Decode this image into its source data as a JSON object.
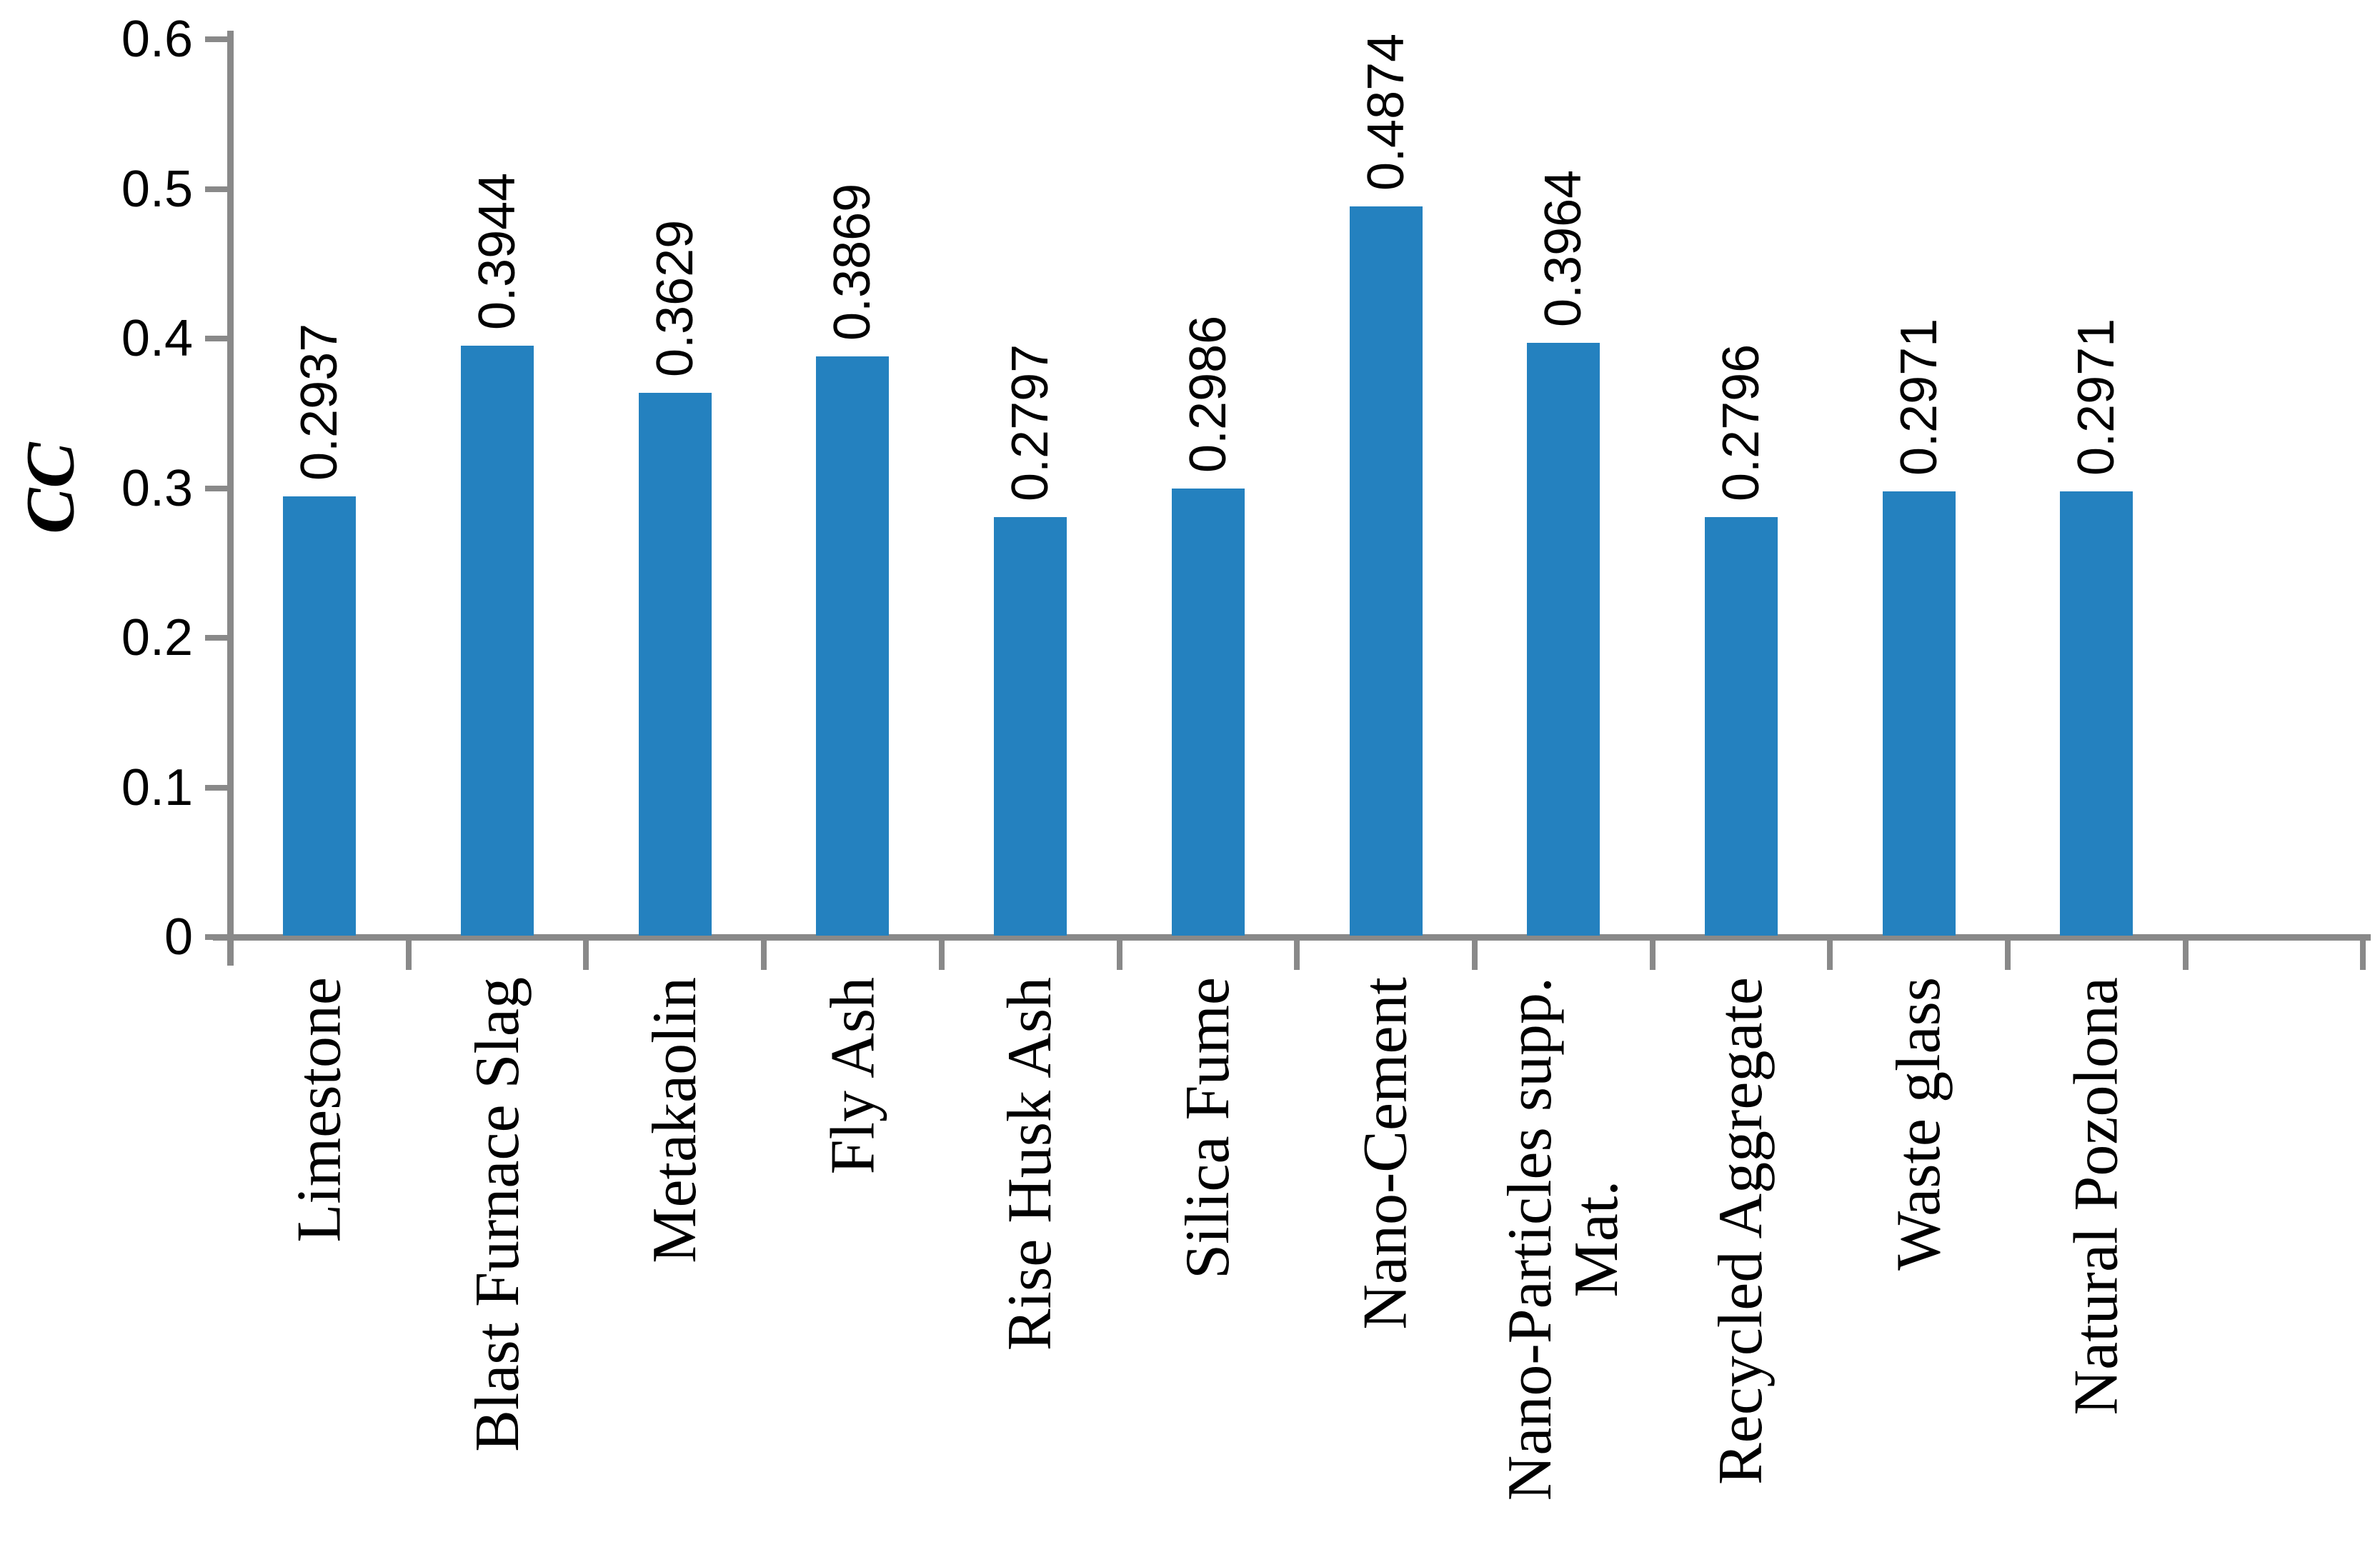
{
  "chart_data": {
    "type": "bar",
    "title": "",
    "xlabel": "",
    "ylabel": "CC",
    "categories": [
      [
        "Limestone"
      ],
      [
        "Blast Furnace Slag"
      ],
      [
        "Metakaolin"
      ],
      [
        "Fly Ash"
      ],
      [
        "Rise Husk Ash"
      ],
      [
        "Silica Fume"
      ],
      [
        "Nano-Cement"
      ],
      [
        "Nano-Particles supp.",
        "Mat."
      ],
      [
        "Recycled Aggregate"
      ],
      [
        "Waste glass"
      ],
      [
        "Natural Pozolona"
      ]
    ],
    "values": [
      0.2937,
      0.3944,
      0.3629,
      0.3869,
      0.2797,
      0.2986,
      0.4874,
      0.3964,
      0.2796,
      0.2971,
      0.2971
    ],
    "value_labels": [
      "0.2937",
      "0.3944",
      "0.3629",
      "0.3869",
      "0.2797",
      "0.2986",
      "0.4874",
      "0.3964",
      "0.2796",
      "0.2971",
      "0.2971"
    ],
    "y_ticks": [
      "0",
      "0.1",
      "0.2",
      "0.3",
      "0.4",
      "0.5",
      "0.6"
    ],
    "ylim": [
      0,
      0.6
    ],
    "grid": false,
    "legend_position": "none",
    "bar_color": "#2481BF",
    "axis_color": "#898989",
    "label_color": "#000000",
    "empty_trailing_slots": 1
  }
}
